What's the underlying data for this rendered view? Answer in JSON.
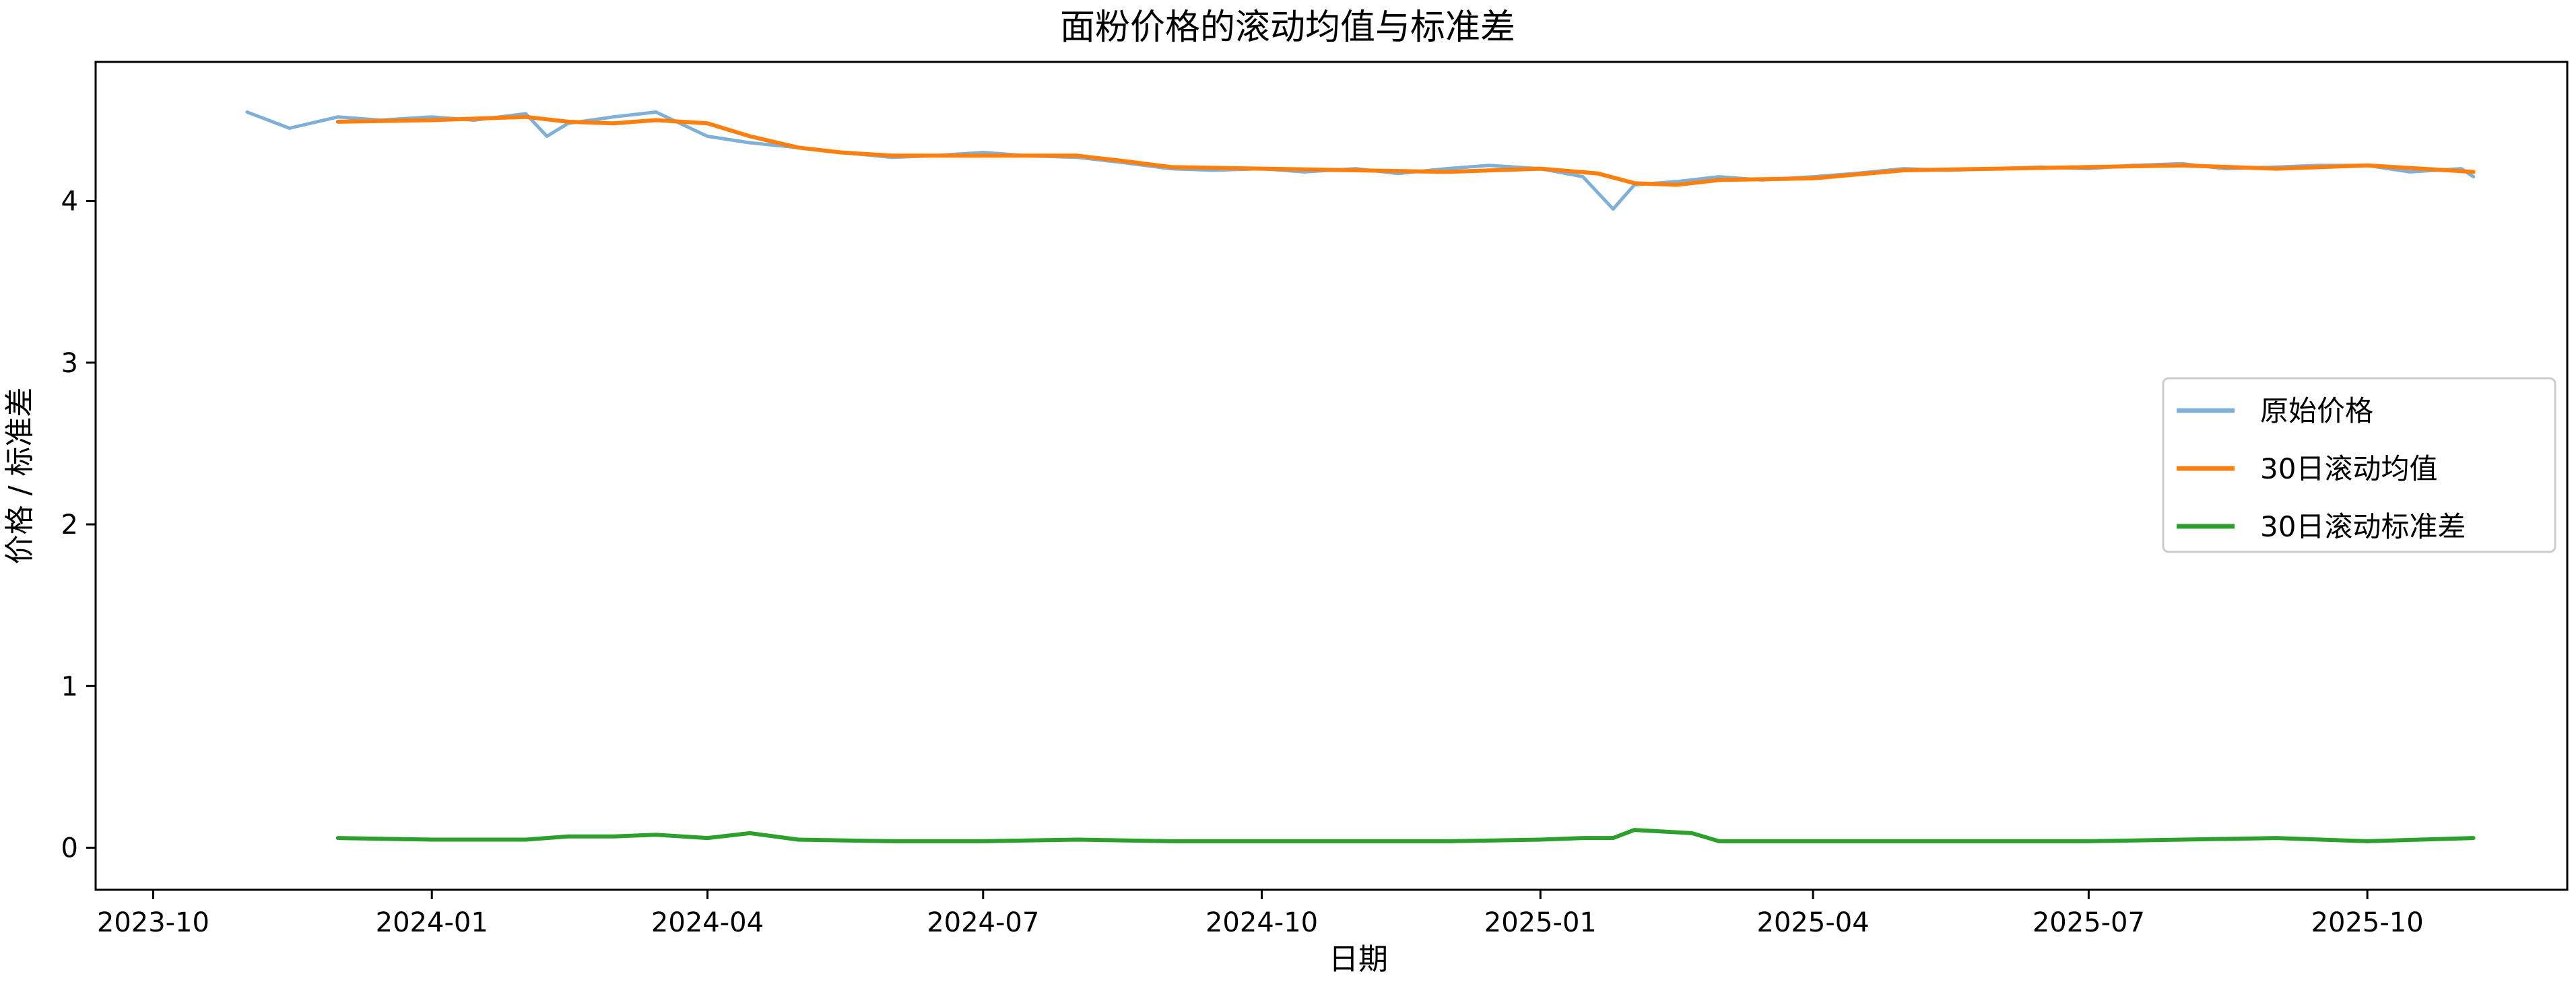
{
  "chart_data": {
    "type": "line",
    "title": "面粉价格的滚动均值与标准差",
    "xlabel": "日期",
    "ylabel": "价格 / 标准差",
    "xlim": [
      "2023-09-12",
      "2025-12-06"
    ],
    "ylim": [
      -0.26,
      4.86
    ],
    "x_ticks": [
      "2023-10-01",
      "2024-01-01",
      "2024-04-01",
      "2024-07-01",
      "2024-10-01",
      "2025-01-01",
      "2025-04-01",
      "2025-07-01",
      "2025-10-01"
    ],
    "x_tick_labels": [
      "2023-10",
      "2024-01",
      "2024-04",
      "2024-07",
      "2024-10",
      "2025-01",
      "2025-04",
      "2025-07",
      "2025-10"
    ],
    "y_ticks": [
      0,
      1,
      2,
      3,
      4
    ],
    "y_tick_labels": [
      "0",
      "1",
      "2",
      "3",
      "4"
    ],
    "grid": false,
    "legend": {
      "placement": "center-right"
    },
    "series": [
      {
        "name": "原始价格",
        "color": "#7fb0d8",
        "x": [
          "2023-11-01",
          "2023-11-15",
          "2023-12-01",
          "2023-12-15",
          "2024-01-01",
          "2024-01-15",
          "2024-02-01",
          "2024-02-08",
          "2024-02-15",
          "2024-03-01",
          "2024-03-15",
          "2024-04-01",
          "2024-04-15",
          "2024-05-01",
          "2024-05-15",
          "2024-06-01",
          "2024-06-15",
          "2024-07-01",
          "2024-07-15",
          "2024-08-01",
          "2024-08-15",
          "2024-09-01",
          "2024-09-15",
          "2024-10-01",
          "2024-10-15",
          "2024-11-01",
          "2024-11-15",
          "2024-12-01",
          "2024-12-15",
          "2025-01-01",
          "2025-01-15",
          "2025-01-25",
          "2025-02-01",
          "2025-02-15",
          "2025-03-01",
          "2025-03-15",
          "2025-04-01",
          "2025-04-15",
          "2025-05-01",
          "2025-05-15",
          "2025-06-01",
          "2025-06-15",
          "2025-07-01",
          "2025-07-15",
          "2025-08-01",
          "2025-08-15",
          "2025-09-01",
          "2025-09-15",
          "2025-10-01",
          "2025-10-15",
          "2025-11-01",
          "2025-11-05"
        ],
        "values": [
          4.55,
          4.45,
          4.52,
          4.5,
          4.52,
          4.5,
          4.54,
          4.4,
          4.48,
          4.52,
          4.55,
          4.4,
          4.36,
          4.33,
          4.3,
          4.27,
          4.28,
          4.3,
          4.28,
          4.27,
          4.24,
          4.2,
          4.19,
          4.2,
          4.18,
          4.2,
          4.17,
          4.2,
          4.22,
          4.2,
          4.15,
          3.95,
          4.1,
          4.12,
          4.15,
          4.13,
          4.15,
          4.17,
          4.2,
          4.19,
          4.2,
          4.21,
          4.2,
          4.22,
          4.23,
          4.2,
          4.21,
          4.22,
          4.22,
          4.18,
          4.2,
          4.15
        ]
      },
      {
        "name": "30日滚动均值",
        "color": "#ff7f0e",
        "x": [
          "2023-12-01",
          "2024-01-01",
          "2024-02-01",
          "2024-02-15",
          "2024-03-01",
          "2024-03-15",
          "2024-04-01",
          "2024-04-15",
          "2024-05-01",
          "2024-05-15",
          "2024-06-01",
          "2024-07-01",
          "2024-08-01",
          "2024-08-15",
          "2024-09-01",
          "2024-10-01",
          "2024-11-01",
          "2024-12-01",
          "2025-01-01",
          "2025-01-20",
          "2025-02-01",
          "2025-02-15",
          "2025-03-01",
          "2025-04-01",
          "2025-05-01",
          "2025-06-01",
          "2025-07-01",
          "2025-08-01",
          "2025-09-01",
          "2025-10-01",
          "2025-11-05"
        ],
        "values": [
          4.49,
          4.5,
          4.52,
          4.49,
          4.48,
          4.5,
          4.48,
          4.4,
          4.33,
          4.3,
          4.28,
          4.28,
          4.28,
          4.25,
          4.21,
          4.2,
          4.19,
          4.18,
          4.2,
          4.17,
          4.11,
          4.1,
          4.13,
          4.14,
          4.19,
          4.2,
          4.21,
          4.22,
          4.2,
          4.22,
          4.18
        ]
      },
      {
        "name": "30日滚动标准差",
        "color": "#2ca02c",
        "x": [
          "2023-12-01",
          "2024-01-01",
          "2024-02-01",
          "2024-02-15",
          "2024-03-01",
          "2024-03-15",
          "2024-04-01",
          "2024-04-15",
          "2024-05-01",
          "2024-06-01",
          "2024-07-01",
          "2024-08-01",
          "2024-09-01",
          "2024-10-01",
          "2024-11-01",
          "2024-12-01",
          "2025-01-01",
          "2025-01-15",
          "2025-01-25",
          "2025-02-01",
          "2025-02-20",
          "2025-03-01",
          "2025-04-01",
          "2025-05-01",
          "2025-06-01",
          "2025-07-01",
          "2025-08-01",
          "2025-09-01",
          "2025-10-01",
          "2025-11-05"
        ],
        "values": [
          0.06,
          0.05,
          0.05,
          0.07,
          0.07,
          0.08,
          0.06,
          0.09,
          0.05,
          0.04,
          0.04,
          0.05,
          0.04,
          0.04,
          0.04,
          0.04,
          0.05,
          0.06,
          0.06,
          0.11,
          0.09,
          0.04,
          0.04,
          0.04,
          0.04,
          0.04,
          0.05,
          0.06,
          0.04,
          0.06
        ]
      }
    ]
  }
}
